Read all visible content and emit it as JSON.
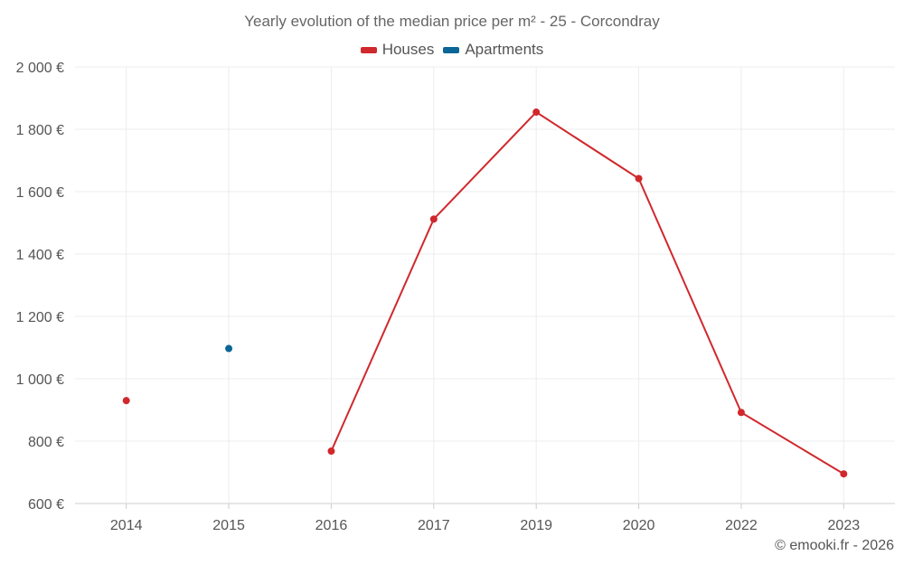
{
  "chart_data": {
    "type": "line",
    "title": "Yearly evolution of the median price per m² - 25 - Corcondray",
    "categories": [
      "2014",
      "2015",
      "2016",
      "2017",
      "2019",
      "2020",
      "2022",
      "2023"
    ],
    "ylim": [
      600,
      2000
    ],
    "yticks": [
      600,
      800,
      1000,
      1200,
      1400,
      1600,
      1800,
      2000
    ],
    "ytick_labels": [
      "600 €",
      "800 €",
      "1 000 €",
      "1 200 €",
      "1 400 €",
      "1 600 €",
      "1 800 €",
      "2 000 €"
    ],
    "grid": true,
    "legend_position": "top-center",
    "series": [
      {
        "name": "Houses",
        "color": "#d0282c",
        "values": [
          930,
          null,
          768,
          1512,
          1855,
          1642,
          892,
          695
        ]
      },
      {
        "name": "Apartments",
        "color": "#0a6696",
        "values": [
          null,
          1097,
          null,
          null,
          null,
          null,
          null,
          null
        ]
      }
    ]
  },
  "credit": "© emooki.fr - 2026"
}
